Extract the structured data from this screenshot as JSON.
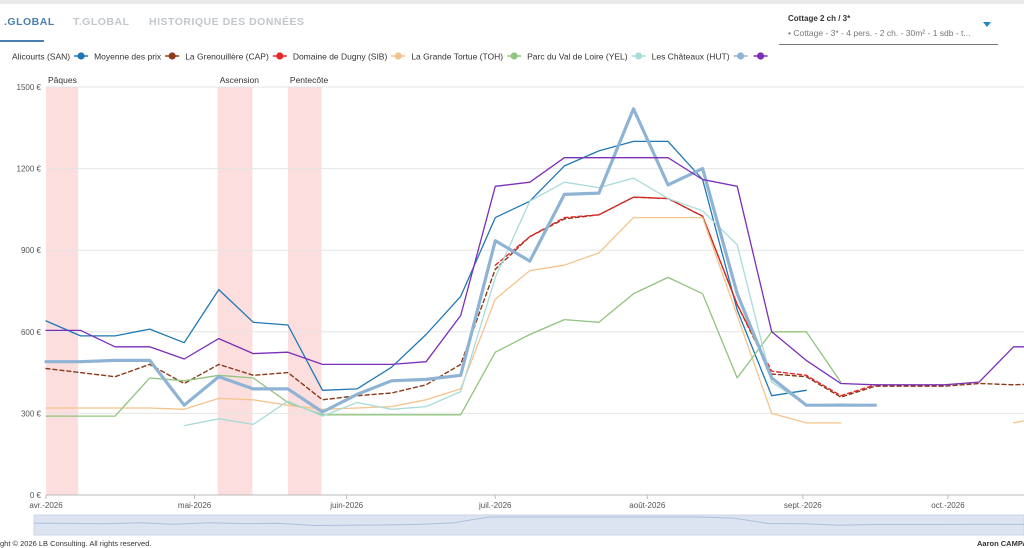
{
  "tabs": [
    {
      "label": ".GLOBAL",
      "active": true
    },
    {
      "label": "T.GLOBAL",
      "active": false
    },
    {
      "label": "HISTORIQUE DES DONNÉES",
      "active": false
    }
  ],
  "selector": {
    "label": "Cottage 2 ch / 3*",
    "value": "• Cottage - 3* - 4 pers. - 2 ch. - 30m² - 1 sdb - t..."
  },
  "footer": {
    "copyright": "ght © 2026 LB Consulting. All rights reserved.",
    "user": "Aaron CAMPA"
  },
  "chart_data": {
    "type": "line",
    "title": "",
    "xlabel": "",
    "ylabel": "",
    "x_start": "2026-04-01",
    "x_step_days": 7,
    "x_ticks": [
      {
        "label": "avr.-2026",
        "week": 0
      },
      {
        "label": "mai-2026",
        "week": 4.3
      },
      {
        "label": "juin-2026",
        "week": 8.7
      },
      {
        "label": "juil.-2026",
        "week": 13
      },
      {
        "label": "août-2026",
        "week": 17.4
      },
      {
        "label": "sept.-2026",
        "week": 21.9
      },
      {
        "label": "oct.-2026",
        "week": 26.1
      }
    ],
    "y_ticks": [
      {
        "label": "0 €",
        "value": 0
      },
      {
        "label": "300 €",
        "value": 300
      },
      {
        "label": "600 €",
        "value": 600
      },
      {
        "label": "900 €",
        "value": 900
      },
      {
        "label": "1200 €",
        "value": 1200
      },
      {
        "label": "1500 €",
        "value": 1500
      }
    ],
    "ylim": [
      0,
      1500
    ],
    "xlim": [
      0,
      28.3
    ],
    "holidays": [
      {
        "label": "Pâques",
        "start": 0,
        "end": 0.93
      },
      {
        "label": "Ascension",
        "start": 4.97,
        "end": 5.97
      },
      {
        "label": "Pentecôte",
        "start": 7.0,
        "end": 7.97
      }
    ],
    "series": [
      {
        "name": "Alicourts (SAN)",
        "color": "#1f77b4",
        "style": "solid",
        "values": [
          640,
          585,
          585,
          610,
          560,
          755,
          635,
          625,
          385,
          390,
          470,
          590,
          730,
          1020,
          1080,
          1210,
          1265,
          1300,
          1300,
          1160,
          680,
          365,
          385,
          null,
          null,
          null,
          null,
          null,
          null,
          null
        ]
      },
      {
        "name": "Moyenne des prix",
        "color": "#8b3a1a",
        "style": "dashed",
        "values": [
          465,
          450,
          435,
          480,
          410,
          480,
          440,
          450,
          350,
          365,
          375,
          405,
          480,
          830,
          950,
          1015,
          1030,
          1095,
          1090,
          1025,
          700,
          445,
          435,
          360,
          400,
          400,
          400,
          410,
          405,
          410
        ]
      },
      {
        "name": "La Grenouillère (CAP)",
        "color": "#e8272a",
        "style": "dashed",
        "values": [
          null,
          null,
          null,
          null,
          null,
          null,
          null,
          null,
          null,
          null,
          null,
          null,
          null,
          845,
          950,
          1020,
          1030,
          1095,
          1090,
          1025,
          700,
          455,
          440,
          365,
          405,
          null,
          null,
          null,
          null,
          null
        ]
      },
      {
        "name": "Domaine de Dugny (SIB)",
        "color": "#f5c38c",
        "style": "solid",
        "values": [
          320,
          320,
          320,
          320,
          315,
          355,
          350,
          330,
          315,
          320,
          325,
          350,
          390,
          720,
          825,
          845,
          890,
          1020,
          1020,
          1020,
          660,
          300,
          265,
          265,
          null,
          null,
          null,
          null,
          265,
          290
        ]
      },
      {
        "name": "La Grande Tortue (TOH)",
        "color": "#91c47e",
        "style": "solid",
        "values": [
          290,
          290,
          290,
          430,
          420,
          440,
          430,
          340,
          295,
          295,
          295,
          295,
          295,
          525,
          590,
          645,
          635,
          740,
          800,
          740,
          430,
          600,
          600,
          415,
          null,
          null,
          null,
          null,
          null,
          null
        ]
      },
      {
        "name": "Parc du Val de Loire (YEL)",
        "color": "#a9dbd9",
        "style": "solid",
        "values": [
          null,
          null,
          null,
          null,
          255,
          280,
          260,
          345,
          290,
          340,
          315,
          325,
          380,
          800,
          1080,
          1150,
          1130,
          1165,
          1090,
          1045,
          920,
          415,
          330,
          335,
          330,
          null,
          null,
          null,
          null,
          null
        ]
      },
      {
        "name": "Les Châteaux (HUT)",
        "color": "#8fb3d4",
        "style": "thick",
        "values": [
          490,
          490,
          495,
          495,
          330,
          435,
          390,
          390,
          305,
          370,
          420,
          425,
          440,
          935,
          860,
          1105,
          1110,
          1420,
          1140,
          1200,
          740,
          430,
          330,
          330,
          330,
          null,
          null,
          null,
          null,
          null
        ]
      },
      {
        "name": "",
        "color": "#7b2fb8",
        "style": "solid",
        "values": [
          605,
          605,
          545,
          545,
          500,
          575,
          520,
          525,
          480,
          480,
          480,
          490,
          660,
          1135,
          1150,
          1240,
          1240,
          1240,
          1240,
          1160,
          1135,
          600,
          495,
          410,
          405,
          405,
          405,
          415,
          545,
          545
        ]
      }
    ]
  }
}
